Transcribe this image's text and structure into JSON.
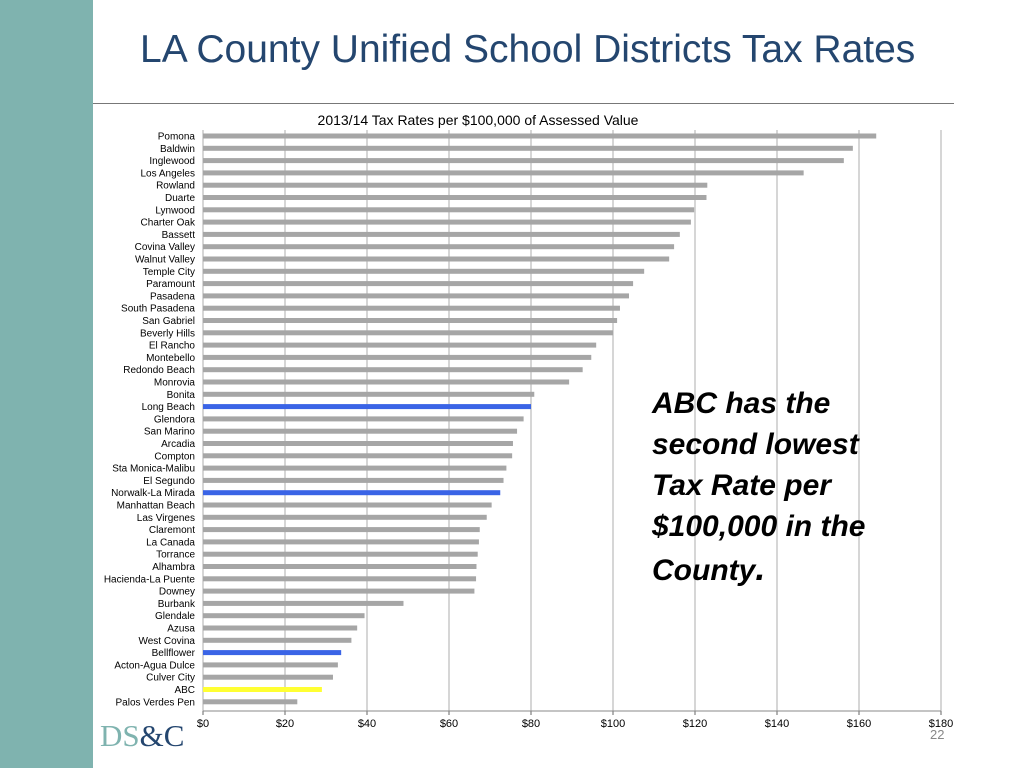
{
  "slide": {
    "title": "LA County Unified School Districts Tax Rates",
    "callout_line1": "ABC has the",
    "callout_line2": "second lowest",
    "callout_line3": "Tax Rate per",
    "callout_line4": "$100,000 in the",
    "callout_line5": "County",
    "callout_period": ".",
    "logo_ds": "DS",
    "logo_rest": "&C",
    "page_number": "22"
  },
  "colors": {
    "sidebar": "#7fb3af",
    "title": "#24466f",
    "bar_default": "#a6a6a6",
    "bar_highlight_blue": "#3a64e6",
    "bar_highlight_yellow": "#ffff33",
    "grid": "#c8c8c8"
  },
  "chart_data": {
    "type": "bar",
    "orientation": "horizontal",
    "title": "2013/14 Tax Rates per $100,000 of Assessed Value",
    "xlim": [
      0,
      180
    ],
    "x_ticks": [
      "$0",
      "$20",
      "$40",
      "$60",
      "$80",
      "$100",
      "$120",
      "$140",
      "$160",
      "$180"
    ],
    "grid": true,
    "categories": [
      "Pomona",
      "Baldwin",
      "Inglewood",
      "Los Angeles",
      "Rowland",
      "Duarte",
      "Lynwood",
      "Charter Oak",
      "Bassett",
      "Covina Valley",
      "Walnut Valley",
      "Temple City",
      "Paramount",
      "Pasadena",
      "South Pasadena",
      "San Gabriel",
      "Beverly Hills",
      "El Rancho",
      "Montebello",
      "Redondo Beach",
      "Monrovia",
      "Bonita",
      "Long Beach",
      "Glendora",
      "San Marino",
      "Arcadia",
      "Compton",
      "Sta Monica-Malibu",
      "El Segundo",
      "Norwalk-La Mirada",
      "Manhattan Beach",
      "Las Virgenes",
      "Claremont",
      "La Canada",
      "Torrance",
      "Alhambra",
      "Hacienda-La Puente",
      "Downey",
      "Burbank",
      "Glendale",
      "Azusa",
      "West Covina",
      "Bellflower",
      "Acton-Agua Dulce",
      "Culver City",
      "ABC",
      "Palos Verdes Pen"
    ],
    "values": [
      164.2,
      158.5,
      156.3,
      146.5,
      123.0,
      122.8,
      119.8,
      119.0,
      116.3,
      114.9,
      113.7,
      107.6,
      104.9,
      103.9,
      101.7,
      101.0,
      100.0,
      95.9,
      94.7,
      92.6,
      89.3,
      80.8,
      80.0,
      78.2,
      76.6,
      75.6,
      75.4,
      74.0,
      73.3,
      72.5,
      70.4,
      69.2,
      67.5,
      67.3,
      67.0,
      66.7,
      66.6,
      66.2,
      48.9,
      39.4,
      37.6,
      36.2,
      33.7,
      32.9,
      31.7,
      29.0,
      23.0
    ],
    "highlights": {
      "Long Beach": "blue",
      "Norwalk-La Mirada": "blue",
      "Bellflower": "blue",
      "ABC": "yellow"
    }
  }
}
